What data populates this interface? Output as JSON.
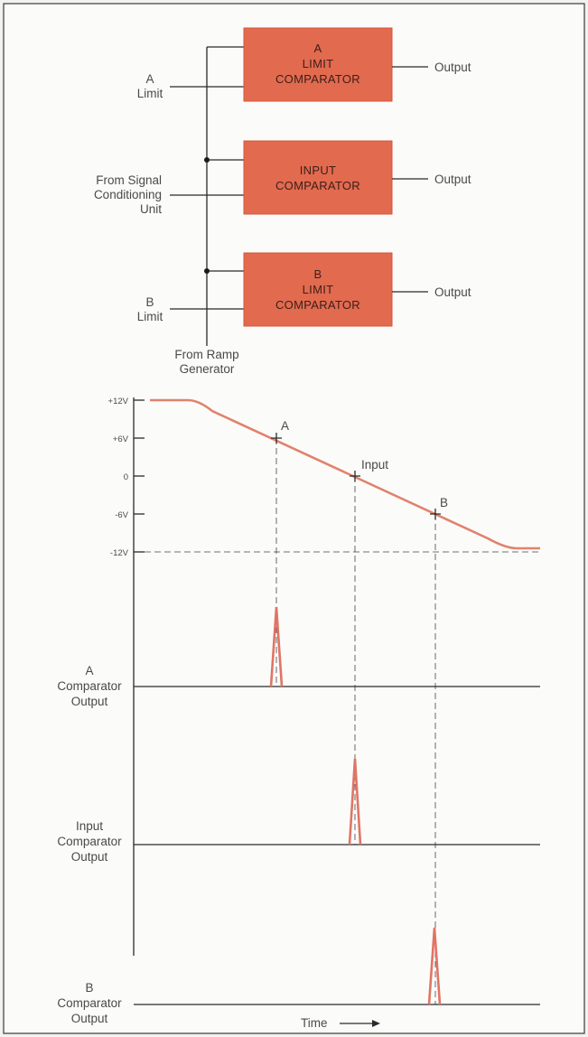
{
  "block_diagram": {
    "comparators": [
      {
        "lines": [
          "A",
          "LIMIT",
          "COMPARATOR"
        ],
        "output": "Output"
      },
      {
        "lines": [
          "INPUT",
          "COMPARATOR"
        ],
        "output": "Output"
      },
      {
        "lines": [
          "B",
          "LIMIT",
          "COMPARATOR"
        ],
        "output": "Output"
      }
    ],
    "inputs": [
      {
        "lines": [
          "A",
          "Limit"
        ]
      },
      {
        "lines": [
          "From Signal",
          "Conditioning",
          "Unit"
        ]
      },
      {
        "lines": [
          "B",
          "Limit"
        ]
      }
    ],
    "ramp_source": [
      "From Ramp",
      "Generator"
    ]
  },
  "timing": {
    "voltage_ticks": [
      "+12V",
      "+6V",
      "0",
      "-6V",
      "-12V"
    ],
    "crossing_labels": [
      "A",
      "Input",
      "B"
    ],
    "traces": [
      {
        "lines": [
          "A",
          "Comparator",
          "Output"
        ]
      },
      {
        "lines": [
          "Input",
          "Comparator",
          "Output"
        ]
      },
      {
        "lines": [
          "B",
          "Comparator",
          "Output"
        ]
      }
    ],
    "time_label": "Time"
  }
}
